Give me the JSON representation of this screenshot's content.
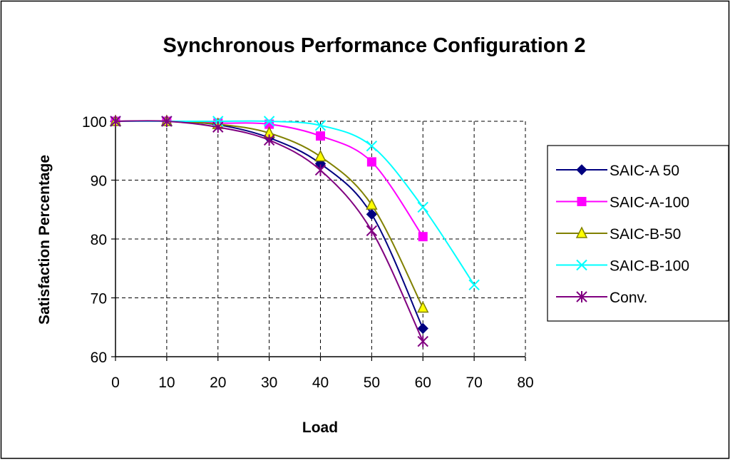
{
  "chart_data": {
    "type": "line",
    "title": "Synchronous Performance Configuration 2",
    "xlabel": "Load",
    "ylabel": "Satisfaction Percentage",
    "xlim": [
      0,
      80
    ],
    "ylim": [
      60,
      100
    ],
    "x_ticks": [
      0,
      10,
      20,
      30,
      40,
      50,
      60,
      70,
      80
    ],
    "y_ticks": [
      60,
      70,
      80,
      90,
      100
    ],
    "grid": true,
    "legend_position": "right",
    "series": [
      {
        "name": "SAIC-A 50",
        "color": "#000080",
        "marker": "diamond",
        "x": [
          0,
          10,
          20,
          30,
          40,
          50,
          60
        ],
        "y": [
          100,
          100,
          99.4,
          97.2,
          92.8,
          84.2,
          64.8
        ]
      },
      {
        "name": "SAIC-A-100",
        "color": "#ff00ff",
        "marker": "square",
        "x": [
          0,
          10,
          20,
          30,
          40,
          50,
          60
        ],
        "y": [
          100,
          100,
          99.7,
          99.5,
          97.5,
          93.1,
          80.4
        ]
      },
      {
        "name": "SAIC-B-50",
        "color": "#808000",
        "marker": "triangle",
        "x": [
          0,
          10,
          20,
          30,
          40,
          50,
          60
        ],
        "y": [
          100,
          100,
          99.5,
          98.0,
          94.0,
          85.8,
          68.3
        ]
      },
      {
        "name": "SAIC-B-100",
        "color": "#00ffff",
        "marker": "x",
        "x": [
          0,
          10,
          20,
          30,
          40,
          50,
          60,
          70
        ],
        "y": [
          100,
          100,
          100,
          100,
          99.3,
          95.8,
          85.4,
          72.2
        ]
      },
      {
        "name": "Conv.",
        "color": "#800080",
        "marker": "asterisk",
        "x": [
          0,
          10,
          20,
          30,
          40,
          50,
          60
        ],
        "y": [
          100,
          100,
          99.0,
          96.8,
          91.7,
          81.4,
          62.6
        ]
      }
    ]
  }
}
